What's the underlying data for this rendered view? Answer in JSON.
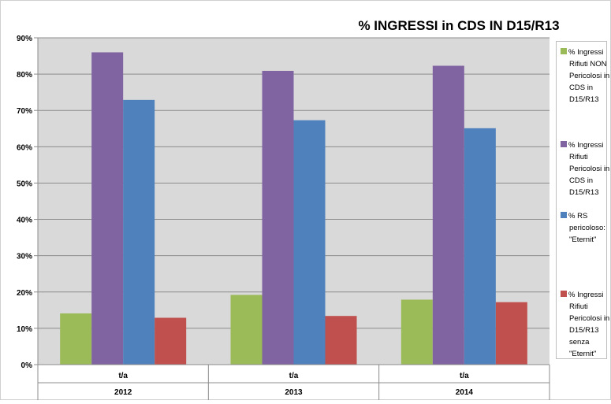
{
  "colors": {
    "series": [
      "#9bbb59",
      "#8064a2",
      "#4f81bd",
      "#c0504d"
    ],
    "plot_background": "#d9d9d9",
    "gridline": "#8c8c8c",
    "border": "#8c8c8c",
    "text": "#000000"
  },
  "chart_data": {
    "type": "bar",
    "title": "% INGRESSI in CDS IN D15/R13",
    "xlabel": "",
    "ylabel": "",
    "categories": [
      "2012",
      "2013",
      "2014"
    ],
    "subcategories": [
      "t/a",
      "t/a",
      "t/a"
    ],
    "ylim": [
      0,
      90
    ],
    "yticks": [
      "0%",
      "10%",
      "20%",
      "30%",
      "40%",
      "50%",
      "60%",
      "70%",
      "80%",
      "90%"
    ],
    "grid": true,
    "legend_position": "right",
    "series": [
      {
        "name": "% Ingressi Rifiuti NON Pericolosi in CDS in D15/R13",
        "legend_lines": [
          "% Ingressi",
          "Rifiuti NON",
          "Pericolosi in",
          "CDS in",
          "D15/R13"
        ],
        "values": [
          14.1,
          19.2,
          17.9
        ]
      },
      {
        "name": "% Ingressi Rifiuti Pericolosi in CDS in D15/R13",
        "legend_lines": [
          "% Ingressi",
          "Rifiuti",
          "Pericolosi in",
          "CDS in",
          "D15/R13"
        ],
        "values": [
          86.0,
          80.9,
          82.3
        ]
      },
      {
        "name": "% RS pericoloso: \"Eternit\"",
        "legend_lines": [
          "% RS",
          "pericoloso:",
          "\"Eternit\""
        ],
        "values": [
          72.9,
          67.3,
          65.1
        ]
      },
      {
        "name": "% Ingressi Rifiuti Pericolosi in D15/R13 senza \"Eternit\"",
        "legend_lines": [
          "% Ingressi",
          "Rifiuti",
          "Pericolosi in",
          "D15/R13",
          "senza",
          "\"Eternit\""
        ],
        "values": [
          12.9,
          13.4,
          17.2
        ]
      }
    ]
  }
}
